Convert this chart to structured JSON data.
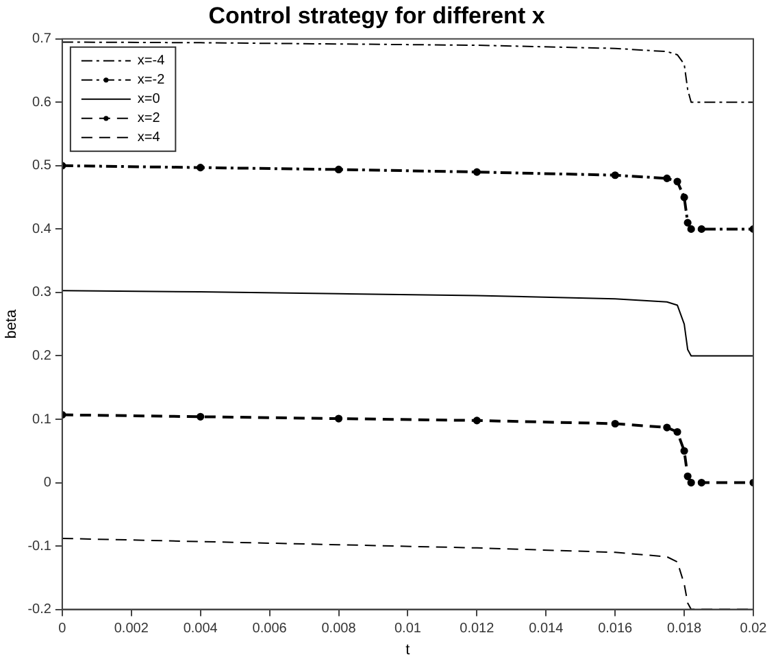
{
  "chart_data": {
    "type": "line",
    "title": "Control strategy for different x",
    "xlabel": "t",
    "ylabel": "beta",
    "xlim": [
      0,
      0.02
    ],
    "xticks": [
      0,
      0.002,
      0.004,
      0.006,
      0.008,
      0.01,
      0.012,
      0.014,
      0.016,
      0.018,
      0.02
    ],
    "ylim": [
      -0.2,
      0.7
    ],
    "yticks": [
      -0.2,
      -0.1,
      0,
      0.1,
      0.2,
      0.3,
      0.4,
      0.5,
      0.6,
      0.7
    ],
    "grid": false,
    "legend": "top left",
    "x": [
      0,
      0.004,
      0.008,
      0.012,
      0.016,
      0.0175,
      0.0178,
      0.018,
      0.0181,
      0.0182,
      0.0185,
      0.02
    ],
    "series": [
      {
        "name": "x=-4",
        "color": "#000000",
        "line_style": "dashdot",
        "marker": "none",
        "values": [
          0.695,
          0.694,
          0.692,
          0.69,
          0.685,
          0.68,
          0.675,
          0.66,
          0.62,
          0.6,
          0.6,
          0.6
        ]
      },
      {
        "name": "x=-2",
        "color": "#000000",
        "line_style": "dashdot",
        "marker": "circle",
        "values": [
          0.5,
          0.497,
          0.494,
          0.49,
          0.485,
          0.48,
          0.475,
          0.45,
          0.41,
          0.4,
          0.4,
          0.4
        ]
      },
      {
        "name": "x=0",
        "color": "#000000",
        "line_style": "solid",
        "marker": "none",
        "values": [
          0.303,
          0.301,
          0.298,
          0.295,
          0.29,
          0.285,
          0.28,
          0.25,
          0.21,
          0.2,
          0.2,
          0.2
        ]
      },
      {
        "name": "x=2",
        "color": "#000000",
        "line_style": "dashed",
        "marker": "circle",
        "values": [
          0.107,
          0.104,
          0.101,
          0.098,
          0.093,
          0.087,
          0.08,
          0.05,
          0.01,
          0,
          0,
          0
        ]
      },
      {
        "name": "x=4",
        "color": "#000000",
        "line_style": "dashed",
        "marker": "none",
        "values": [
          -0.088,
          -0.093,
          -0.098,
          -0.103,
          -0.11,
          -0.117,
          -0.125,
          -0.16,
          -0.19,
          -0.2,
          -0.2,
          -0.2
        ]
      }
    ]
  }
}
